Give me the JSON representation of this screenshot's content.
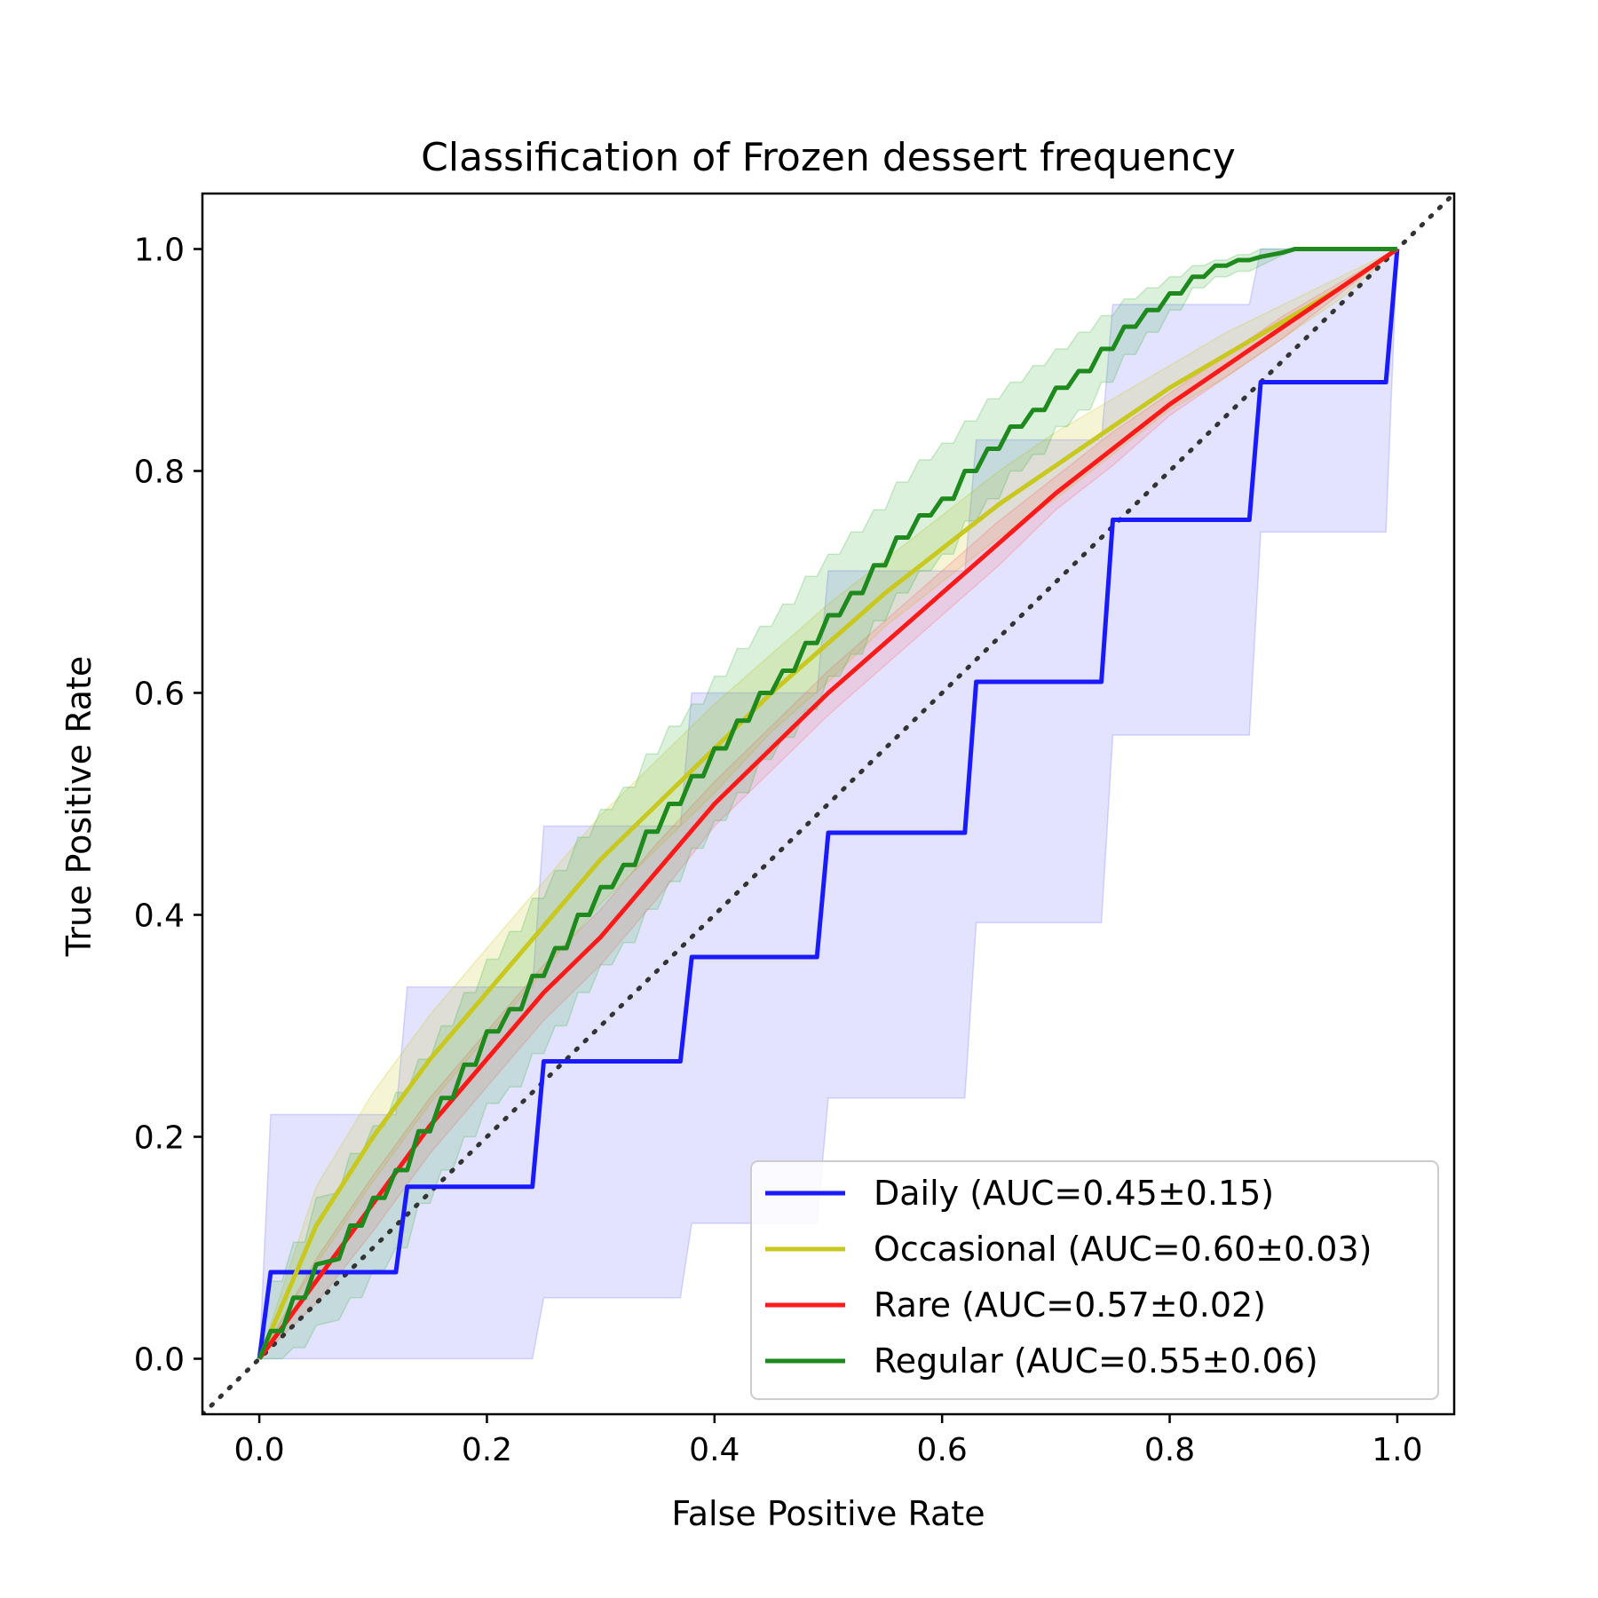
{
  "chart_data": {
    "type": "line",
    "title": "Classification of Frozen dessert frequency",
    "xlabel": "False Positive Rate",
    "ylabel": "True Positive Rate",
    "xlim": [
      -0.05,
      1.05
    ],
    "ylim": [
      -0.05,
      1.05
    ],
    "xticks": [
      "0.0",
      "0.2",
      "0.4",
      "0.6",
      "0.8",
      "1.0"
    ],
    "yticks": [
      "0.0",
      "0.2",
      "0.4",
      "0.6",
      "0.8",
      "1.0"
    ],
    "grid": false,
    "legend_position": "lower-right",
    "diagonal": {
      "x": [
        -0.05,
        1.05
      ],
      "y": [
        -0.05,
        1.05
      ],
      "color": "#333333",
      "style": "dotted"
    },
    "series": [
      {
        "name": "Daily (AUC=0.45±0.15)",
        "color": "#1a1aff",
        "fill_color": "#6666ff",
        "step": true,
        "x": [
          0,
          0.01,
          0.12,
          0.13,
          0.24,
          0.25,
          0.37,
          0.38,
          0.49,
          0.5,
          0.62,
          0.63,
          0.74,
          0.75,
          0.87,
          0.88,
          0.99,
          1.0
        ],
        "y": [
          0,
          0.078,
          0.078,
          0.155,
          0.155,
          0.268,
          0.268,
          0.362,
          0.362,
          0.474,
          0.474,
          0.61,
          0.61,
          0.756,
          0.756,
          0.88,
          0.88,
          1.0
        ],
        "upper": [
          0,
          0.22,
          0.22,
          0.335,
          0.335,
          0.48,
          0.48,
          0.6,
          0.6,
          0.71,
          0.71,
          0.828,
          0.828,
          0.95,
          0.95,
          1.0,
          1.0,
          1.0
        ],
        "lower": [
          0,
          0,
          0,
          0,
          0,
          0.055,
          0.055,
          0.122,
          0.122,
          0.235,
          0.235,
          0.393,
          0.393,
          0.562,
          0.562,
          0.745,
          0.745,
          1.0
        ]
      },
      {
        "name": "Occasional (AUC=0.60±0.03)",
        "color": "#c8c81e",
        "fill_color": "#c8c81e",
        "step": false,
        "x": [
          0,
          0.05,
          0.1,
          0.15,
          0.2,
          0.25,
          0.3,
          0.35,
          0.4,
          0.45,
          0.5,
          0.55,
          0.6,
          0.65,
          0.7,
          0.75,
          0.8,
          0.85,
          0.9,
          0.95,
          1.0
        ],
        "y": [
          0,
          0.12,
          0.2,
          0.27,
          0.33,
          0.39,
          0.45,
          0.5,
          0.55,
          0.6,
          0.645,
          0.69,
          0.73,
          0.77,
          0.805,
          0.84,
          0.875,
          0.905,
          0.935,
          0.965,
          1.0
        ],
        "upper": [
          0,
          0.155,
          0.24,
          0.31,
          0.37,
          0.43,
          0.49,
          0.54,
          0.59,
          0.635,
          0.68,
          0.72,
          0.76,
          0.8,
          0.835,
          0.865,
          0.895,
          0.925,
          0.95,
          0.975,
          1.0
        ],
        "lower": [
          0,
          0.085,
          0.16,
          0.23,
          0.29,
          0.35,
          0.41,
          0.46,
          0.51,
          0.565,
          0.61,
          0.66,
          0.7,
          0.74,
          0.775,
          0.815,
          0.855,
          0.885,
          0.92,
          0.955,
          1.0
        ]
      },
      {
        "name": "Rare (AUC=0.57±0.02)",
        "color": "#ff1a1a",
        "fill_color": "#ff6666",
        "step": false,
        "x": [
          0,
          0.05,
          0.1,
          0.15,
          0.2,
          0.25,
          0.3,
          0.35,
          0.4,
          0.45,
          0.5,
          0.55,
          0.6,
          0.65,
          0.7,
          0.75,
          0.8,
          0.85,
          0.9,
          0.95,
          1.0
        ],
        "y": [
          0,
          0.07,
          0.14,
          0.21,
          0.27,
          0.33,
          0.38,
          0.44,
          0.5,
          0.55,
          0.6,
          0.645,
          0.69,
          0.735,
          0.78,
          0.82,
          0.86,
          0.895,
          0.93,
          0.965,
          1.0
        ],
        "upper": [
          0,
          0.09,
          0.165,
          0.235,
          0.295,
          0.355,
          0.405,
          0.465,
          0.52,
          0.57,
          0.62,
          0.665,
          0.71,
          0.755,
          0.795,
          0.835,
          0.87,
          0.905,
          0.94,
          0.97,
          1.0
        ],
        "lower": [
          0,
          0.05,
          0.115,
          0.185,
          0.245,
          0.305,
          0.355,
          0.415,
          0.48,
          0.53,
          0.58,
          0.625,
          0.67,
          0.715,
          0.765,
          0.805,
          0.85,
          0.885,
          0.92,
          0.96,
          1.0
        ]
      },
      {
        "name": "Regular (AUC=0.55±0.06)",
        "color": "#1e8a1e",
        "fill_color": "#3cb43c",
        "step": true,
        "x": [
          0,
          0.01,
          0.02,
          0.03,
          0.04,
          0.05,
          0.07,
          0.08,
          0.09,
          0.1,
          0.11,
          0.12,
          0.13,
          0.14,
          0.15,
          0.16,
          0.17,
          0.18,
          0.19,
          0.2,
          0.21,
          0.22,
          0.23,
          0.24,
          0.25,
          0.26,
          0.27,
          0.28,
          0.29,
          0.3,
          0.31,
          0.32,
          0.33,
          0.34,
          0.35,
          0.36,
          0.37,
          0.38,
          0.39,
          0.4,
          0.41,
          0.42,
          0.43,
          0.44,
          0.45,
          0.46,
          0.47,
          0.48,
          0.49,
          0.5,
          0.51,
          0.52,
          0.53,
          0.54,
          0.55,
          0.56,
          0.57,
          0.58,
          0.59,
          0.6,
          0.61,
          0.62,
          0.63,
          0.64,
          0.65,
          0.66,
          0.67,
          0.68,
          0.69,
          0.7,
          0.71,
          0.72,
          0.73,
          0.74,
          0.75,
          0.76,
          0.77,
          0.78,
          0.79,
          0.8,
          0.81,
          0.82,
          0.83,
          0.84,
          0.85,
          0.86,
          0.87,
          0.88,
          0.89,
          0.9,
          0.91,
          0.92,
          0.93,
          0.94,
          0.95,
          0.96,
          0.97,
          0.98,
          0.99,
          1.0
        ],
        "y": [
          0,
          0.025,
          0.025,
          0.055,
          0.055,
          0.085,
          0.09,
          0.12,
          0.12,
          0.145,
          0.145,
          0.17,
          0.17,
          0.205,
          0.205,
          0.235,
          0.235,
          0.265,
          0.265,
          0.295,
          0.295,
          0.315,
          0.315,
          0.345,
          0.345,
          0.37,
          0.37,
          0.4,
          0.4,
          0.425,
          0.425,
          0.445,
          0.445,
          0.475,
          0.475,
          0.5,
          0.5,
          0.525,
          0.525,
          0.55,
          0.55,
          0.575,
          0.575,
          0.6,
          0.6,
          0.62,
          0.62,
          0.645,
          0.645,
          0.67,
          0.67,
          0.69,
          0.69,
          0.715,
          0.715,
          0.74,
          0.74,
          0.76,
          0.76,
          0.775,
          0.775,
          0.8,
          0.8,
          0.82,
          0.82,
          0.84,
          0.84,
          0.855,
          0.855,
          0.875,
          0.875,
          0.89,
          0.89,
          0.91,
          0.91,
          0.93,
          0.93,
          0.945,
          0.945,
          0.96,
          0.96,
          0.975,
          0.975,
          0.985,
          0.985,
          0.99,
          0.99,
          0.993,
          0.995,
          0.997,
          1.0,
          1.0,
          1.0,
          1.0,
          1.0,
          1.0,
          1.0,
          1.0,
          1.0,
          1.0
        ],
        "upper": [
          0,
          0.07,
          0.07,
          0.105,
          0.105,
          0.145,
          0.15,
          0.185,
          0.185,
          0.21,
          0.21,
          0.24,
          0.24,
          0.27,
          0.27,
          0.3,
          0.3,
          0.33,
          0.33,
          0.36,
          0.36,
          0.385,
          0.385,
          0.415,
          0.415,
          0.44,
          0.44,
          0.47,
          0.47,
          0.495,
          0.495,
          0.515,
          0.515,
          0.545,
          0.545,
          0.57,
          0.57,
          0.59,
          0.59,
          0.615,
          0.615,
          0.64,
          0.64,
          0.66,
          0.66,
          0.68,
          0.68,
          0.705,
          0.705,
          0.725,
          0.725,
          0.745,
          0.745,
          0.765,
          0.765,
          0.79,
          0.79,
          0.81,
          0.81,
          0.825,
          0.825,
          0.845,
          0.845,
          0.865,
          0.865,
          0.88,
          0.88,
          0.895,
          0.895,
          0.91,
          0.91,
          0.925,
          0.925,
          0.94,
          0.94,
          0.955,
          0.955,
          0.965,
          0.965,
          0.975,
          0.975,
          0.985,
          0.985,
          0.99,
          0.99,
          0.995,
          0.995,
          1.0,
          1.0,
          1.0,
          1.0,
          1.0,
          1.0,
          1.0,
          1.0,
          1.0,
          1.0,
          1.0,
          1.0,
          1.0
        ],
        "lower": [
          0,
          0.0,
          0.0,
          0.01,
          0.01,
          0.03,
          0.035,
          0.055,
          0.055,
          0.08,
          0.08,
          0.1,
          0.1,
          0.14,
          0.14,
          0.17,
          0.17,
          0.2,
          0.2,
          0.23,
          0.23,
          0.245,
          0.245,
          0.275,
          0.275,
          0.3,
          0.3,
          0.33,
          0.33,
          0.355,
          0.355,
          0.375,
          0.375,
          0.405,
          0.405,
          0.43,
          0.43,
          0.46,
          0.46,
          0.485,
          0.485,
          0.51,
          0.51,
          0.54,
          0.54,
          0.56,
          0.56,
          0.585,
          0.585,
          0.615,
          0.615,
          0.635,
          0.635,
          0.665,
          0.665,
          0.69,
          0.69,
          0.71,
          0.71,
          0.725,
          0.725,
          0.755,
          0.755,
          0.775,
          0.775,
          0.8,
          0.8,
          0.815,
          0.815,
          0.84,
          0.84,
          0.855,
          0.855,
          0.88,
          0.88,
          0.905,
          0.905,
          0.925,
          0.925,
          0.945,
          0.945,
          0.965,
          0.965,
          0.975,
          0.975,
          0.98,
          0.98,
          0.985,
          0.99,
          0.995,
          1.0,
          1.0,
          1.0,
          1.0,
          1.0,
          1.0,
          1.0,
          1.0,
          1.0,
          1.0
        ]
      }
    ]
  }
}
